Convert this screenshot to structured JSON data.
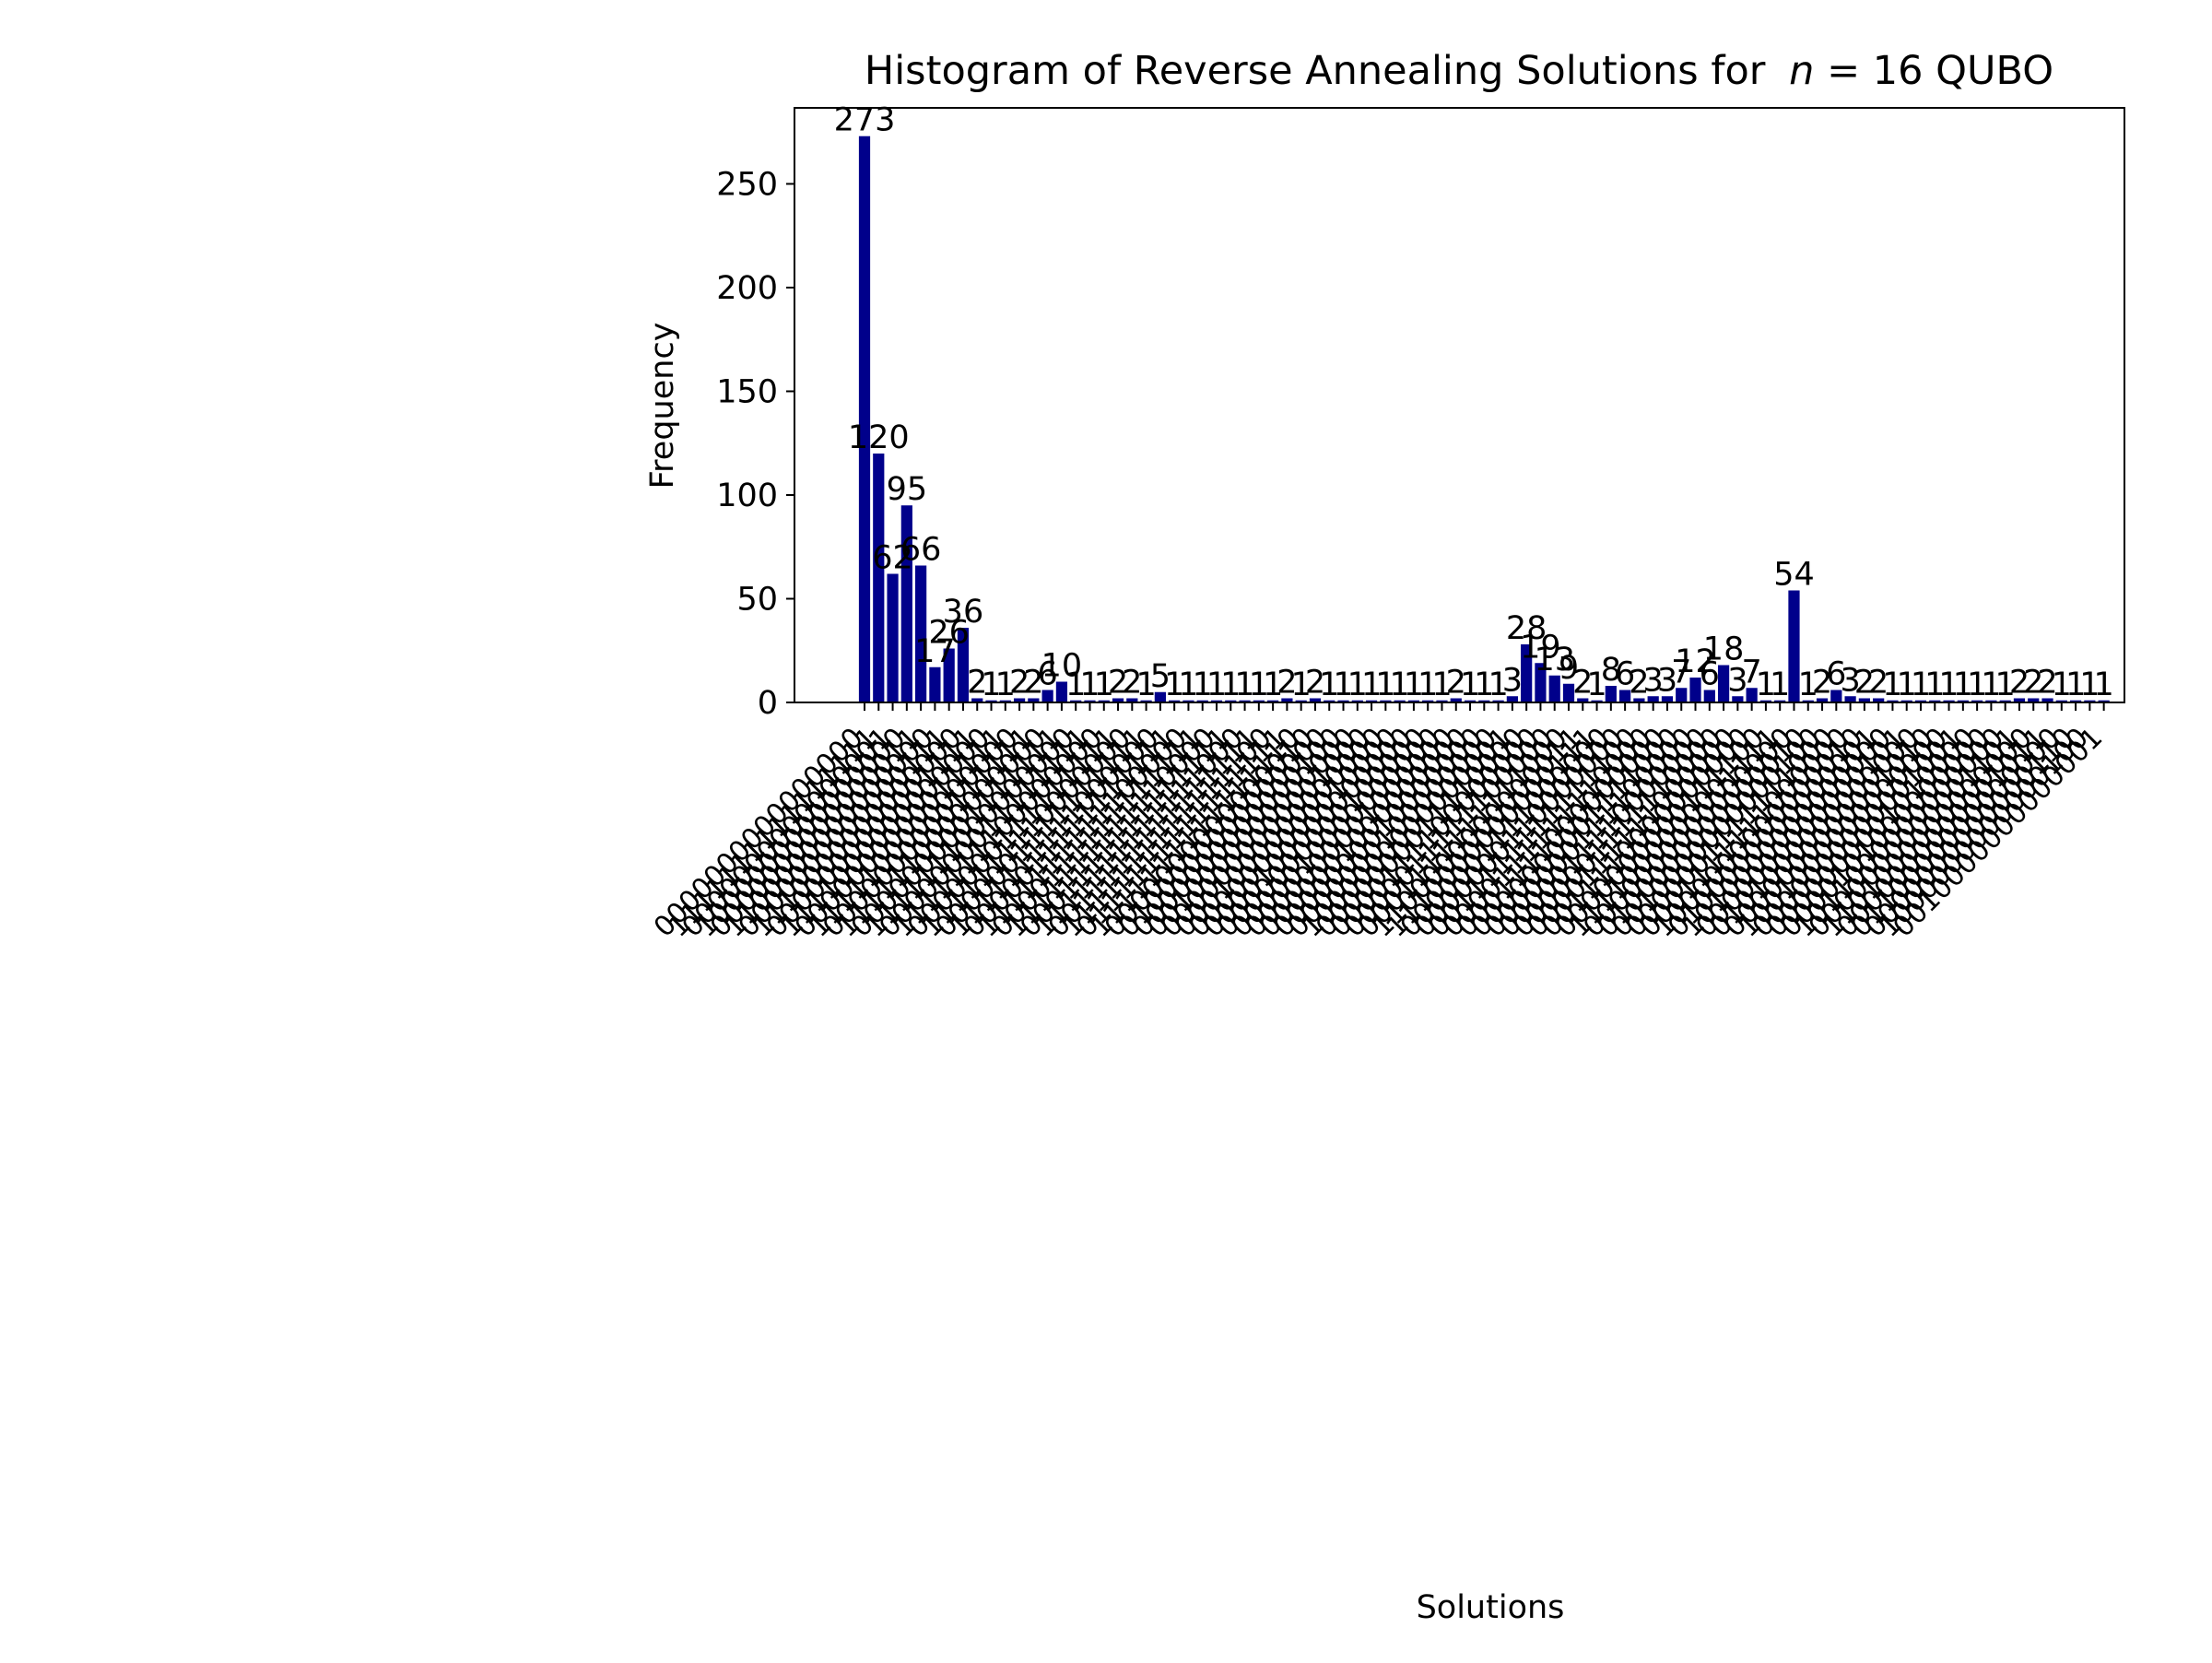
{
  "chart_data": {
    "type": "bar",
    "title": "Histogram of Reverse Annealing Solutions for",
    "title_math_n": "n",
    "title_math_rest": " = 16 QUBO",
    "xlabel": "Solutions",
    "ylabel": "Frequency",
    "ylim": [
      0,
      286.65
    ],
    "yticks": [
      0,
      50,
      100,
      150,
      200,
      250
    ],
    "grid": false,
    "bar_color": "#00008b",
    "xtick_label_rotation": "45 degrees, anchored right",
    "values": [
      273,
      120,
      62,
      95,
      66,
      17,
      26,
      36,
      2,
      1,
      1,
      2,
      2,
      6,
      10,
      1,
      1,
      1,
      2,
      2,
      1,
      5,
      1,
      1,
      1,
      1,
      1,
      1,
      1,
      1,
      2,
      1,
      2,
      1,
      1,
      1,
      1,
      1,
      1,
      1,
      1,
      1,
      2,
      1,
      1,
      1,
      3,
      28,
      19,
      13,
      9,
      2,
      1,
      8,
      6,
      2,
      3,
      3,
      7,
      12,
      6,
      18,
      3,
      7,
      1,
      1,
      54,
      1,
      2,
      6,
      3,
      2,
      2,
      1,
      1,
      1,
      1,
      1,
      1,
      1,
      1,
      1,
      2,
      2,
      2,
      1,
      1,
      1,
      1
    ],
    "categories": [
      "0000000000000000",
      "1111111111111111",
      "0000000000000001",
      "1000000000000000",
      "0000000000000011",
      "1100000000000000",
      "0000000000000111",
      "1110000000000000",
      "0000000000001111",
      "1111000000000000",
      "0000000000011111",
      "1111100000000000",
      "0000000000111111",
      "1111110000000000",
      "0000000001111111",
      "1111111000000000",
      "0000000011111111",
      "1111111100000000",
      "0000000111111111",
      "1111111110000000",
      "0000001111111111",
      "1111111111000000",
      "0000011111111111",
      "1111111111100000",
      "0000111111111111",
      "1111111111110000",
      "0001111111111111",
      "1111111111111000",
      "0011111111111111",
      "1111111111111100",
      "0111111111111111",
      "1111111111111110",
      "0000000000000010",
      "0100000000000000",
      "0000000000000100",
      "0010000000000000",
      "0000000000001000",
      "0001000000000000",
      "0000000000010000",
      "0000100000000000",
      "0000000000100000",
      "0000010000000000",
      "0000000001000000",
      "0000001000000000",
      "0000000010000000",
      "0000000100000000",
      "1000000000000001",
      "0000000011110000",
      "0000111100000000",
      "0000011111100000",
      "0001111111111000",
      "1100000000000011",
      "1110000000000111",
      "0000001111000000",
      "0000000110000000",
      "0011111111111100",
      "0000111111110000",
      "0001111000000000",
      "0000000001111000",
      "0000000111100000",
      "0000011110000000",
      "0000001111110000",
      "0000111111000000",
      "0011110000000000",
      "0000000000111100",
      "1111000000001111",
      "0000000000000000",
      "0100000000000010",
      "0010000000000100",
      "0000001111111000",
      "0001111111000000",
      "1000000000000010",
      "0100000000000001",
      "1010000000000000",
      "0000000000000101",
      "0101000000000000",
      "0000000000001010",
      "1001000000000000",
      "0000000000001001",
      "0000000001010000",
      "0000101000000000",
      "1011000000000000",
      "0000000000001101",
      "1101000000000000",
      "0000000000001011",
      "0110000000000000",
      "0000000000000110",
      "1000000000000100",
      "0010000000000001"
    ]
  }
}
